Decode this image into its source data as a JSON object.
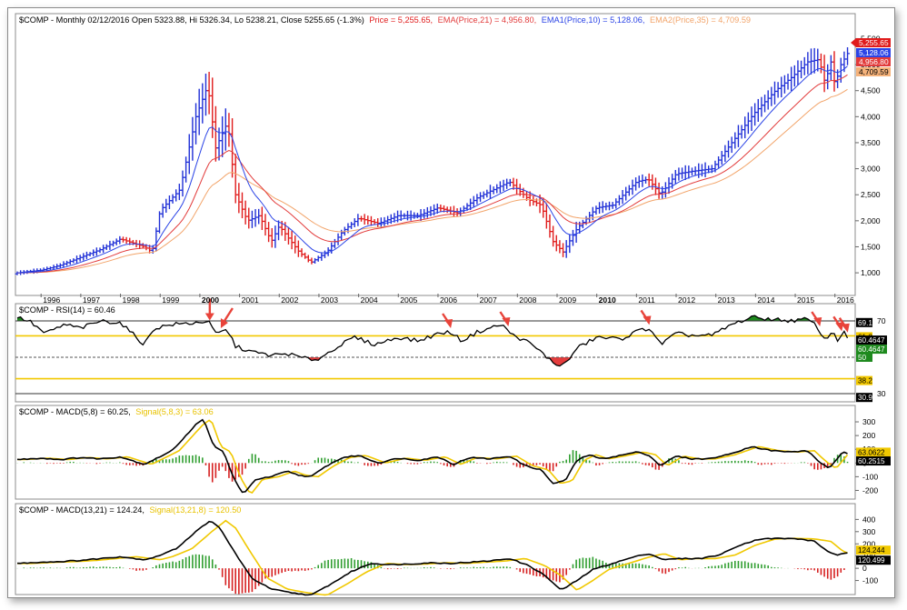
{
  "header": {
    "symbol_line": "$COMP - Monthly 02/12/2016 Open 5323.88, Hi 5326.34, Lo 5238.21, Close 5255.65 (-1.3%)",
    "price_label": "Price = 5,255.65,",
    "ema21_label": "EMA(Price,21) = 4,956.80,",
    "ema10_label": "EMA1(Price,10) = 5,128.06,",
    "ema35_label": "EMA2(Price,35) = 4,709.59"
  },
  "colors": {
    "up_bar": "#1f2fd6",
    "down_bar": "#e01b1b",
    "ema10": "#2b44e6",
    "ema21": "#e23b3b",
    "ema35": "#f2a46a",
    "rsi_line": "#000000",
    "rsi_fill": "#1e8a1e",
    "rsi_band": "#f2c800",
    "macd_line": "#000000",
    "signal_line": "#f0c800",
    "hist_pos": "#2f9e2f",
    "hist_neg": "#d62020",
    "arrow": "#e8433a"
  },
  "chart_data": [
    {
      "type": "ohlc",
      "name": "price",
      "x_tick_labels": [
        "1996",
        "1997",
        "1998",
        "1999",
        "2000",
        "2001",
        "2002",
        "2003",
        "2004",
        "2005",
        "2006",
        "2007",
        "2008",
        "2009",
        "2010",
        "2011",
        "2012",
        "2013",
        "2014",
        "2015",
        "2016"
      ],
      "bold_ticks": [
        "2000",
        "2010"
      ],
      "y_tick_labels": [
        "1,000",
        "1,500",
        "2,000",
        "2,500",
        "3,000",
        "3,500",
        "4,000",
        "4,500",
        "5,000",
        "5,500"
      ],
      "y_ticks": [
        1000,
        1500,
        2000,
        2500,
        3000,
        3500,
        4000,
        4500,
        5000,
        5500
      ],
      "ylim": [
        600,
        5700
      ],
      "x_start": 1995.4,
      "x_end": 2016.35,
      "close_anchors": [
        [
          1995.4,
          1000
        ],
        [
          1996.0,
          1050
        ],
        [
          1996.5,
          1150
        ],
        [
          1997.0,
          1300
        ],
        [
          1997.5,
          1450
        ],
        [
          1998.0,
          1650
        ],
        [
          1998.6,
          1500
        ],
        [
          1998.8,
          1400
        ],
        [
          1999.0,
          2200
        ],
        [
          1999.5,
          2600
        ],
        [
          1999.9,
          4000
        ],
        [
          2000.2,
          4600
        ],
        [
          2000.4,
          3400
        ],
        [
          2000.7,
          3900
        ],
        [
          2000.9,
          2500
        ],
        [
          2001.2,
          2000
        ],
        [
          2001.5,
          2100
        ],
        [
          2001.8,
          1600
        ],
        [
          2002.0,
          1900
        ],
        [
          2002.5,
          1400
        ],
        [
          2002.8,
          1200
        ],
        [
          2003.2,
          1400
        ],
        [
          2003.6,
          1800
        ],
        [
          2004.0,
          2050
        ],
        [
          2004.5,
          1950
        ],
        [
          2005.0,
          2100
        ],
        [
          2005.5,
          2100
        ],
        [
          2006.0,
          2250
        ],
        [
          2006.5,
          2150
        ],
        [
          2007.0,
          2450
        ],
        [
          2007.8,
          2750
        ],
        [
          2008.3,
          2400
        ],
        [
          2008.6,
          2300
        ],
        [
          2008.9,
          1600
        ],
        [
          2009.15,
          1400
        ],
        [
          2009.5,
          1850
        ],
        [
          2010.0,
          2250
        ],
        [
          2010.4,
          2300
        ],
        [
          2011.0,
          2750
        ],
        [
          2011.3,
          2800
        ],
        [
          2011.6,
          2500
        ],
        [
          2012.0,
          2900
        ],
        [
          2012.4,
          2950
        ],
        [
          2012.9,
          3000
        ],
        [
          2013.5,
          3600
        ],
        [
          2014.0,
          4100
        ],
        [
          2014.5,
          4500
        ],
        [
          2014.9,
          4750
        ],
        [
          2015.3,
          5050
        ],
        [
          2015.6,
          5100
        ],
        [
          2015.75,
          4650
        ],
        [
          2015.9,
          5050
        ],
        [
          2016.0,
          4600
        ],
        [
          2016.15,
          5000
        ],
        [
          2016.35,
          5255.65
        ]
      ],
      "series": [
        {
          "name": "Price",
          "last_label": "5,255.65"
        },
        {
          "name": "EMA1(Price,10)",
          "last_label": "5,128.06"
        },
        {
          "name": "EMA(Price,21)",
          "last_label": "4,956.80"
        },
        {
          "name": "EMA2(Price,35)",
          "last_label": "4,709.59"
        }
      ]
    },
    {
      "type": "line",
      "name": "rsi",
      "title": "$COMP - RSI(14) = 60.46",
      "levels": [
        30,
        50,
        70
      ],
      "band_values": [
        38.2,
        61.8
      ],
      "y_tick_labels": [
        "70",
        "30"
      ],
      "ylim": [
        27,
        73
      ],
      "value_labels": [
        "69.1",
        "61.8",
        "60.4647",
        "60.4647",
        "50",
        "38.2",
        "30.9"
      ],
      "anchors": [
        [
          1995.4,
          72
        ],
        [
          1995.7,
          70
        ],
        [
          1996.1,
          63
        ],
        [
          1996.6,
          68
        ],
        [
          1997.0,
          66
        ],
        [
          1997.5,
          70
        ],
        [
          1998.0,
          69
        ],
        [
          1998.6,
          57
        ],
        [
          1998.85,
          66
        ],
        [
          1999.3,
          68
        ],
        [
          1999.9,
          69
        ],
        [
          2000.2,
          70
        ],
        [
          2000.4,
          63
        ],
        [
          2000.7,
          65
        ],
        [
          2000.9,
          56
        ],
        [
          2001.3,
          53
        ],
        [
          2001.8,
          51
        ],
        [
          2002.2,
          52
        ],
        [
          2002.7,
          49
        ],
        [
          2003.0,
          49
        ],
        [
          2003.4,
          55
        ],
        [
          2003.9,
          61
        ],
        [
          2004.4,
          57
        ],
        [
          2005.0,
          61
        ],
        [
          2005.5,
          59
        ],
        [
          2006.0,
          63
        ],
        [
          2006.3,
          64
        ],
        [
          2006.6,
          59
        ],
        [
          2007.0,
          64
        ],
        [
          2007.6,
          68
        ],
        [
          2007.9,
          62
        ],
        [
          2008.3,
          58
        ],
        [
          2008.7,
          51
        ],
        [
          2008.95,
          46
        ],
        [
          2009.2,
          46
        ],
        [
          2009.5,
          55
        ],
        [
          2010.0,
          61
        ],
        [
          2010.6,
          60
        ],
        [
          2011.1,
          65
        ],
        [
          2011.35,
          66
        ],
        [
          2011.6,
          57
        ],
        [
          2012.0,
          63
        ],
        [
          2012.4,
          62
        ],
        [
          2012.9,
          62
        ],
        [
          2013.4,
          68
        ],
        [
          2013.9,
          72
        ],
        [
          2014.4,
          71
        ],
        [
          2014.9,
          70
        ],
        [
          2015.3,
          71
        ],
        [
          2015.55,
          67
        ],
        [
          2015.75,
          59
        ],
        [
          2015.95,
          65
        ],
        [
          2016.05,
          59
        ],
        [
          2016.2,
          64
        ],
        [
          2016.35,
          60.46
        ]
      ],
      "arrows_at": [
        2000.25,
        2000.55,
        2006.3,
        2007.75,
        2011.3,
        2015.6,
        2016.15,
        2016.3
      ]
    },
    {
      "type": "line",
      "name": "macd_5_8",
      "title": "$COMP - MACD(5,8) = 60.25,",
      "signal_label": "Signal(5,8,3) = 63.06",
      "y_tick_labels": [
        "300",
        "200",
        "100",
        "0",
        "-100",
        "-200"
      ],
      "y_ticks": [
        300,
        200,
        100,
        0,
        -100,
        -200
      ],
      "ylim": [
        -250,
        340
      ],
      "value_labels": [
        "63.0622",
        "60.2515"
      ],
      "anchors": [
        [
          1995.4,
          25
        ],
        [
          1996.0,
          35
        ],
        [
          1996.5,
          25
        ],
        [
          1997.0,
          40
        ],
        [
          1997.5,
          30
        ],
        [
          1998.0,
          45
        ],
        [
          1998.6,
          -10
        ],
        [
          1998.85,
          25
        ],
        [
          1999.3,
          90
        ],
        [
          1999.9,
          280
        ],
        [
          2000.1,
          320
        ],
        [
          2000.35,
          120
        ],
        [
          2000.6,
          80
        ],
        [
          2000.85,
          -110
        ],
        [
          2001.1,
          -230
        ],
        [
          2001.4,
          -120
        ],
        [
          2001.8,
          -100
        ],
        [
          2002.2,
          -60
        ],
        [
          2002.5,
          -90
        ],
        [
          2002.8,
          -100
        ],
        [
          2003.2,
          -20
        ],
        [
          2003.6,
          40
        ],
        [
          2004.0,
          55
        ],
        [
          2004.5,
          0
        ],
        [
          2005.0,
          35
        ],
        [
          2005.5,
          20
        ],
        [
          2006.0,
          45
        ],
        [
          2006.4,
          -10
        ],
        [
          2006.8,
          40
        ],
        [
          2007.3,
          30
        ],
        [
          2007.8,
          50
        ],
        [
          2008.2,
          -20
        ],
        [
          2008.6,
          -50
        ],
        [
          2008.9,
          -150
        ],
        [
          2009.2,
          -130
        ],
        [
          2009.5,
          20
        ],
        [
          2009.8,
          60
        ],
        [
          2010.1,
          30
        ],
        [
          2010.5,
          50
        ],
        [
          2011.0,
          80
        ],
        [
          2011.3,
          60
        ],
        [
          2011.6,
          -20
        ],
        [
          2012.0,
          50
        ],
        [
          2012.4,
          30
        ],
        [
          2012.8,
          30
        ],
        [
          2013.3,
          60
        ],
        [
          2013.9,
          120
        ],
        [
          2014.4,
          90
        ],
        [
          2014.9,
          80
        ],
        [
          2015.3,
          90
        ],
        [
          2015.6,
          10
        ],
        [
          2015.85,
          -40
        ],
        [
          2016.05,
          30
        ],
        [
          2016.2,
          80
        ],
        [
          2016.35,
          60.25
        ]
      ],
      "signal_lag": 0.18
    },
    {
      "type": "line",
      "name": "macd_13_21",
      "title": "$COMP - MACD(13,21) = 124.24,",
      "signal_label": "Signal(13,21,8) = 120.50",
      "y_tick_labels": [
        "400",
        "300",
        "200",
        "100",
        "0",
        "-100"
      ],
      "y_ticks": [
        400,
        300,
        200,
        100,
        0,
        -100
      ],
      "ylim": [
        -200,
        440
      ],
      "value_labels": [
        "124.244",
        "120.499"
      ],
      "anchors": [
        [
          1995.4,
          40
        ],
        [
          1996.0,
          50
        ],
        [
          1996.5,
          55
        ],
        [
          1997.0,
          65
        ],
        [
          1997.5,
          80
        ],
        [
          1998.0,
          95
        ],
        [
          1998.6,
          70
        ],
        [
          1998.9,
          95
        ],
        [
          1999.4,
          160
        ],
        [
          1999.9,
          300
        ],
        [
          2000.25,
          390
        ],
        [
          2000.5,
          330
        ],
        [
          2000.9,
          120
        ],
        [
          2001.3,
          -80
        ],
        [
          2001.8,
          -170
        ],
        [
          2002.3,
          -200
        ],
        [
          2002.8,
          -220
        ],
        [
          2003.3,
          -130
        ],
        [
          2003.8,
          -30
        ],
        [
          2004.3,
          40
        ],
        [
          2004.8,
          30
        ],
        [
          2005.3,
          35
        ],
        [
          2005.8,
          45
        ],
        [
          2006.3,
          40
        ],
        [
          2006.8,
          50
        ],
        [
          2007.3,
          60
        ],
        [
          2007.8,
          80
        ],
        [
          2008.3,
          20
        ],
        [
          2008.7,
          -60
        ],
        [
          2009.1,
          -180
        ],
        [
          2009.5,
          -100
        ],
        [
          2009.9,
          -10
        ],
        [
          2010.4,
          40
        ],
        [
          2010.9,
          90
        ],
        [
          2011.3,
          120
        ],
        [
          2011.7,
          70
        ],
        [
          2012.1,
          80
        ],
        [
          2012.6,
          80
        ],
        [
          2013.1,
          110
        ],
        [
          2013.6,
          190
        ],
        [
          2014.1,
          240
        ],
        [
          2014.6,
          245
        ],
        [
          2015.1,
          240
        ],
        [
          2015.5,
          220
        ],
        [
          2015.8,
          140
        ],
        [
          2016.05,
          110
        ],
        [
          2016.35,
          124.24
        ]
      ],
      "signal_lag": 0.4
    }
  ]
}
